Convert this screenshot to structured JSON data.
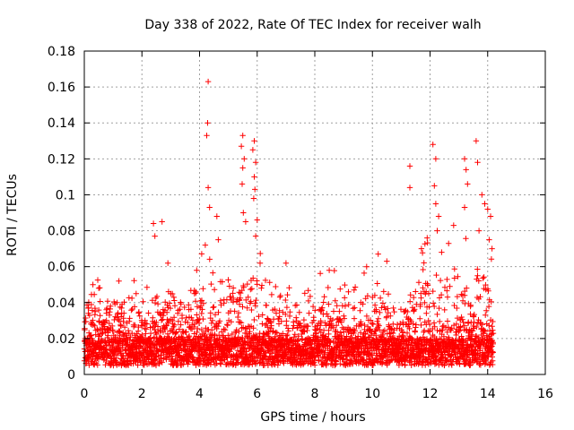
{
  "chart_data": {
    "type": "scatter",
    "title": "Day 338 of 2022, Rate Of TEC Index for receiver walh",
    "xlabel": "GPS time / hours",
    "ylabel": "ROTI / TECUs",
    "xlim": [
      0,
      16
    ],
    "ylim": [
      0,
      0.18
    ],
    "xticks": [
      0,
      2,
      4,
      6,
      8,
      10,
      12,
      14,
      16
    ],
    "yticks": [
      0,
      0.02,
      0.04,
      0.06,
      0.08,
      0.1,
      0.12,
      0.14,
      0.16,
      0.18
    ],
    "ytick_labels": [
      "0",
      "0.02",
      "0.04",
      "0.06",
      "0.08",
      "0.1",
      "0.12",
      "0.14",
      "0.16",
      "0.18"
    ],
    "xtick_labels": [
      "0",
      "2",
      "4",
      "6",
      "8",
      "10",
      "12",
      "14",
      "16"
    ],
    "grid": true,
    "marker": "+",
    "marker_color": "#ff0000",
    "data_extent_hours": [
      0,
      14.2
    ],
    "baseline_band": [
      0.005,
      0.02
    ],
    "peaks": [
      {
        "x": 0.15,
        "y": 0.037
      },
      {
        "x": 0.3,
        "y": 0.05
      },
      {
        "x": 0.5,
        "y": 0.048
      },
      {
        "x": 1.2,
        "y": 0.052
      },
      {
        "x": 1.8,
        "y": 0.045
      },
      {
        "x": 2.4,
        "y": 0.084
      },
      {
        "x": 2.45,
        "y": 0.077
      },
      {
        "x": 2.7,
        "y": 0.085
      },
      {
        "x": 2.9,
        "y": 0.062
      },
      {
        "x": 3.0,
        "y": 0.045
      },
      {
        "x": 3.9,
        "y": 0.058
      },
      {
        "x": 4.2,
        "y": 0.072
      },
      {
        "x": 4.3,
        "y": 0.163
      },
      {
        "x": 4.28,
        "y": 0.14
      },
      {
        "x": 4.25,
        "y": 0.133
      },
      {
        "x": 4.3,
        "y": 0.104
      },
      {
        "x": 4.35,
        "y": 0.093
      },
      {
        "x": 4.6,
        "y": 0.088
      },
      {
        "x": 4.65,
        "y": 0.075
      },
      {
        "x": 5.5,
        "y": 0.133
      },
      {
        "x": 5.45,
        "y": 0.127
      },
      {
        "x": 5.55,
        "y": 0.12
      },
      {
        "x": 5.5,
        "y": 0.115
      },
      {
        "x": 5.48,
        "y": 0.106
      },
      {
        "x": 5.52,
        "y": 0.09
      },
      {
        "x": 5.6,
        "y": 0.085
      },
      {
        "x": 5.9,
        "y": 0.13
      },
      {
        "x": 5.85,
        "y": 0.125
      },
      {
        "x": 5.95,
        "y": 0.118
      },
      {
        "x": 5.9,
        "y": 0.11
      },
      {
        "x": 5.92,
        "y": 0.103
      },
      {
        "x": 5.88,
        "y": 0.098
      },
      {
        "x": 6.0,
        "y": 0.086
      },
      {
        "x": 5.95,
        "y": 0.077
      },
      {
        "x": 6.1,
        "y": 0.062
      },
      {
        "x": 7.0,
        "y": 0.062
      },
      {
        "x": 8.5,
        "y": 0.058
      },
      {
        "x": 9.8,
        "y": 0.06
      },
      {
        "x": 10.2,
        "y": 0.067
      },
      {
        "x": 10.5,
        "y": 0.063
      },
      {
        "x": 11.3,
        "y": 0.116
      },
      {
        "x": 11.3,
        "y": 0.104
      },
      {
        "x": 11.7,
        "y": 0.07
      },
      {
        "x": 12.1,
        "y": 0.128
      },
      {
        "x": 12.2,
        "y": 0.12
      },
      {
        "x": 12.15,
        "y": 0.105
      },
      {
        "x": 12.2,
        "y": 0.095
      },
      {
        "x": 12.3,
        "y": 0.088
      },
      {
        "x": 12.25,
        "y": 0.08
      },
      {
        "x": 11.9,
        "y": 0.076
      },
      {
        "x": 12.4,
        "y": 0.068
      },
      {
        "x": 13.2,
        "y": 0.12
      },
      {
        "x": 13.25,
        "y": 0.114
      },
      {
        "x": 13.3,
        "y": 0.106
      },
      {
        "x": 13.2,
        "y": 0.093
      },
      {
        "x": 13.6,
        "y": 0.13
      },
      {
        "x": 13.65,
        "y": 0.118
      },
      {
        "x": 13.8,
        "y": 0.1
      },
      {
        "x": 13.9,
        "y": 0.095
      },
      {
        "x": 14.0,
        "y": 0.092
      },
      {
        "x": 14.1,
        "y": 0.088
      },
      {
        "x": 13.7,
        "y": 0.08
      },
      {
        "x": 14.05,
        "y": 0.075
      },
      {
        "x": 14.15,
        "y": 0.07
      }
    ]
  }
}
